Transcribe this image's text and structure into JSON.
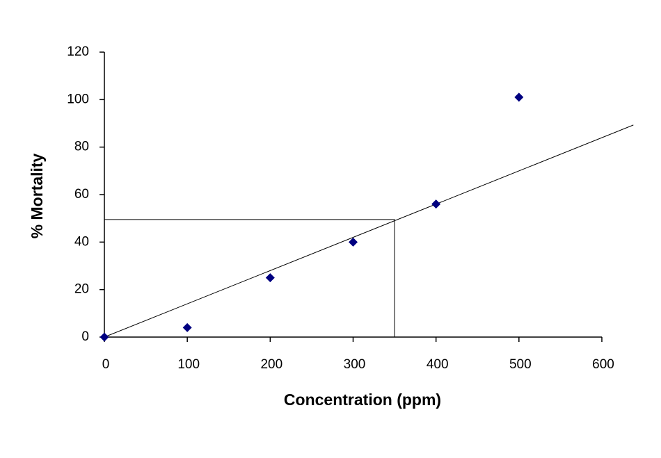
{
  "chart_data": {
    "type": "scatter",
    "x_label": "Concentration (ppm)",
    "y_label": "% Mortality",
    "x": [
      0,
      100,
      200,
      300,
      400,
      500
    ],
    "values": [
      0,
      4,
      25,
      40,
      56,
      101
    ],
    "color": "#000080",
    "trendline": {
      "x": [
        0,
        638
      ],
      "values": [
        0,
        89.3
      ],
      "color": "#000000"
    },
    "guide": {
      "x": [
        0,
        350,
        350
      ],
      "values": [
        49.5,
        49.5,
        0
      ],
      "color": "#000000"
    },
    "xlim": [
      0,
      600
    ],
    "xticks": [
      0,
      100,
      200,
      300,
      400,
      500,
      600
    ],
    "ylim": [
      0,
      120
    ],
    "yticks": [
      0,
      20,
      40,
      60,
      80,
      100,
      120
    ]
  }
}
